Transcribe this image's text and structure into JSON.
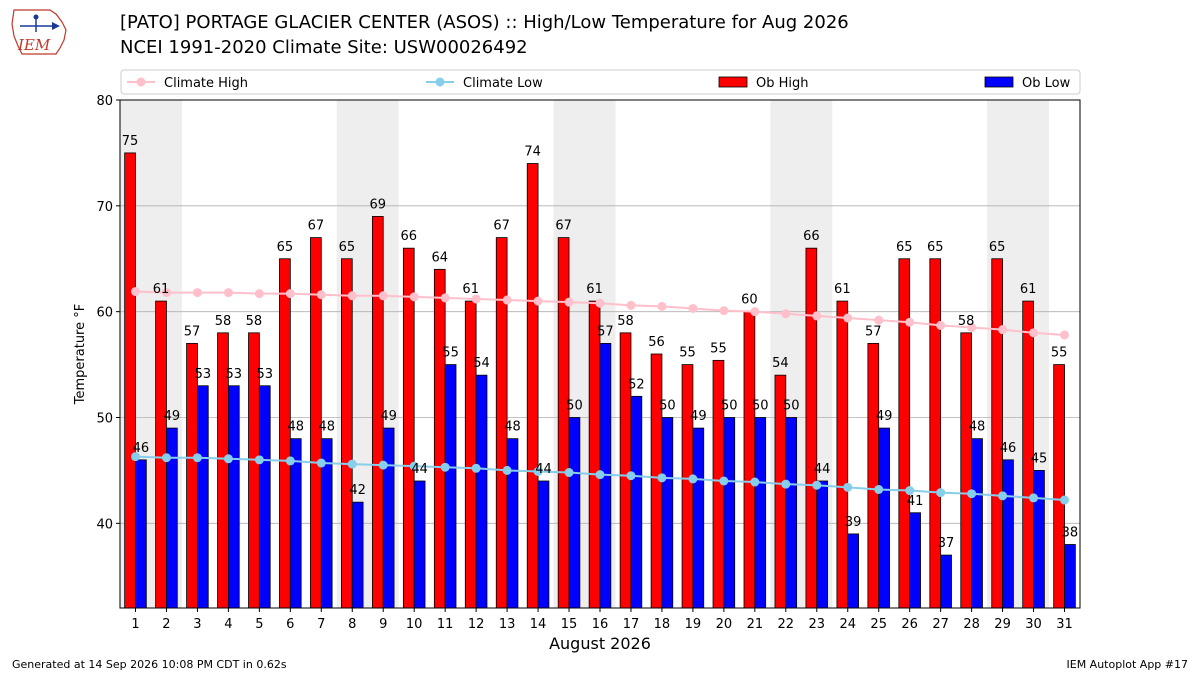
{
  "header": {
    "title_line1": "[PATO] PORTAGE GLACIER CENTER (ASOS) :: High/Low Temperature for Aug 2026",
    "title_line2": "NCEI 1991-2020 Climate Site: USW00026492",
    "logo_text": "IEM"
  },
  "footer": {
    "left": "Generated at 14 Sep 2026 10:08 PM CDT in 0.62s",
    "right": "IEM Autoplot App #17"
  },
  "colors": {
    "ob_high": "#ff0000",
    "ob_low": "#0000ff",
    "climate_high": "#ffc0cb",
    "climate_low": "#87ceeb",
    "weekend_band": "#eeeeee",
    "grid": "#b0b0b0"
  },
  "chart_data": {
    "type": "bar",
    "xlabel": "August 2026",
    "ylabel": "Temperature °F",
    "ylim": [
      32,
      80
    ],
    "yticks": [
      40,
      50,
      60,
      70,
      80
    ],
    "grid": "horizontal",
    "legend_placement": "top",
    "categories": [
      1,
      2,
      3,
      4,
      5,
      6,
      7,
      8,
      9,
      10,
      11,
      12,
      13,
      14,
      15,
      16,
      17,
      18,
      19,
      20,
      21,
      22,
      23,
      24,
      25,
      26,
      27,
      28,
      29,
      30,
      31
    ],
    "shaded_days": [
      [
        1,
        2
      ],
      [
        8,
        9
      ],
      [
        15,
        16
      ],
      [
        22,
        23
      ],
      [
        29,
        30
      ]
    ],
    "series": [
      {
        "name": "Ob High",
        "kind": "bar",
        "color": "#ff0000",
        "values": [
          75,
          61,
          57,
          58,
          58,
          65,
          67,
          65,
          69,
          66,
          64,
          61,
          67,
          74,
          67,
          61,
          58,
          56,
          55,
          55.4,
          60,
          54,
          66,
          61,
          57,
          65,
          65,
          58,
          65,
          61,
          55
        ],
        "labels": [
          "75",
          "61",
          "57",
          "58",
          "58",
          "65",
          "67",
          "65",
          "69",
          "66",
          "64",
          "61",
          "67",
          "74",
          "67",
          "61",
          "58",
          "56",
          "55",
          "55",
          "60",
          "54",
          "66",
          "61",
          "57",
          "65",
          "65",
          "58",
          "65",
          "61",
          "55"
        ]
      },
      {
        "name": "Ob Low",
        "kind": "bar",
        "color": "#0000ff",
        "values": [
          46,
          49,
          53,
          53,
          53,
          48,
          48,
          42,
          49,
          44,
          55,
          54,
          48,
          44,
          50,
          57,
          52,
          50,
          49,
          50,
          50,
          50,
          44,
          39,
          49,
          41,
          37,
          48,
          46,
          45,
          38
        ],
        "labels": [
          "46",
          "49",
          "53",
          "53",
          "53",
          "48",
          "48",
          "42",
          "49",
          "44",
          "55",
          "54",
          "48",
          "44",
          "50",
          "57",
          "52",
          "50",
          "49",
          "50",
          "50",
          "50",
          "44",
          "39",
          "49",
          "41",
          "37",
          "48",
          "46",
          "45",
          "38"
        ]
      },
      {
        "name": "Climate High",
        "kind": "line",
        "color": "#ffc0cb",
        "values": [
          61.9,
          61.8,
          61.8,
          61.8,
          61.7,
          61.7,
          61.6,
          61.5,
          61.5,
          61.4,
          61.3,
          61.2,
          61.1,
          61.0,
          60.9,
          60.8,
          60.6,
          60.5,
          60.3,
          60.1,
          60.0,
          59.8,
          59.6,
          59.4,
          59.2,
          59.0,
          58.7,
          58.5,
          58.3,
          58.0,
          57.8
        ]
      },
      {
        "name": "Climate Low",
        "kind": "line",
        "color": "#87ceeb",
        "values": [
          46.3,
          46.2,
          46.2,
          46.1,
          46.0,
          45.9,
          45.7,
          45.6,
          45.5,
          45.4,
          45.3,
          45.2,
          45.0,
          44.9,
          44.8,
          44.6,
          44.5,
          44.3,
          44.2,
          44.0,
          43.9,
          43.7,
          43.6,
          43.4,
          43.2,
          43.1,
          42.9,
          42.8,
          42.6,
          42.4,
          42.2
        ]
      }
    ]
  }
}
